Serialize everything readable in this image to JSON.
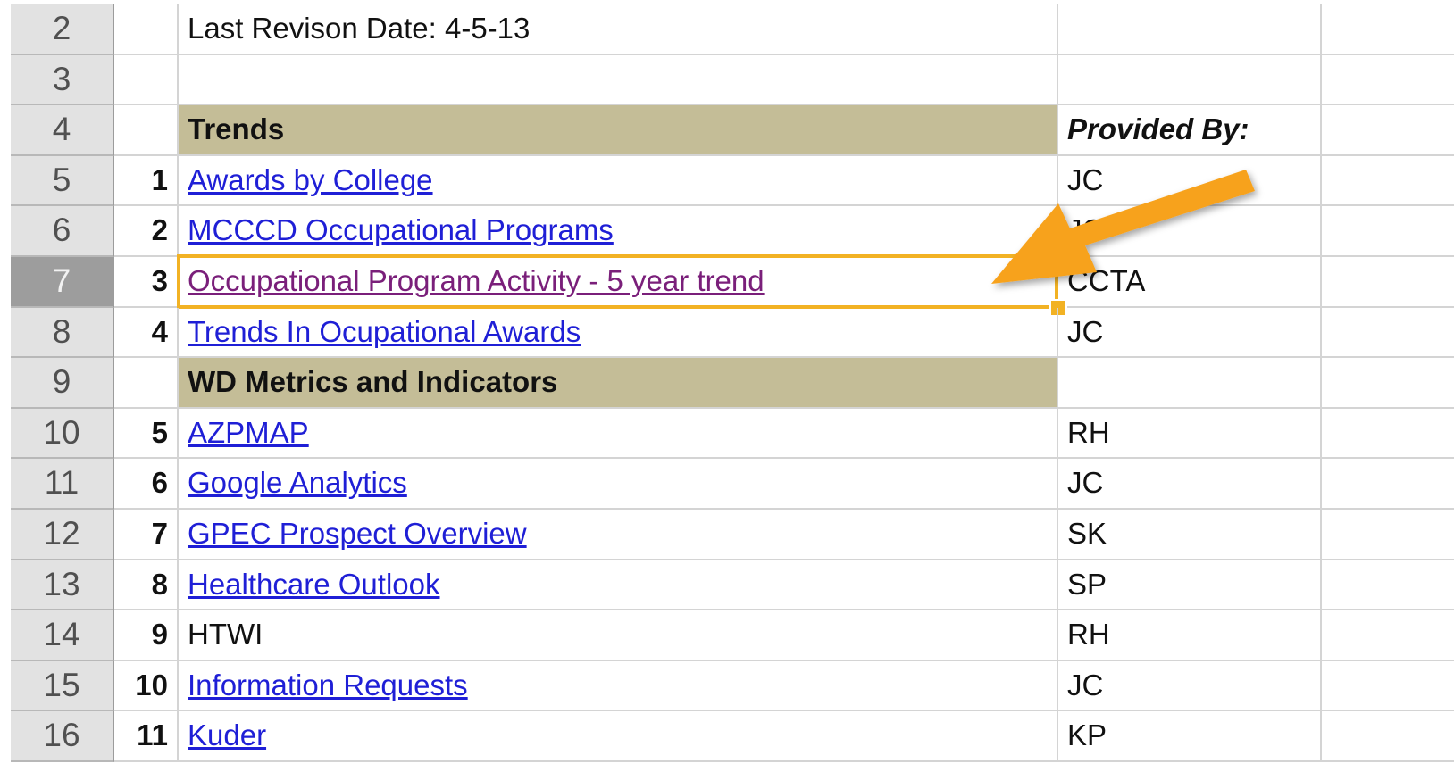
{
  "rows": [
    {
      "row": 2,
      "text": "Last Revison Date: 4-5-13"
    },
    {
      "row": 3
    },
    {
      "row": 4,
      "text": "Trends",
      "section": true,
      "provided": "Provided By:",
      "provided_header": true
    },
    {
      "row": 5,
      "num": 1,
      "text": "Awards by College",
      "link": true,
      "provided": "JC"
    },
    {
      "row": 6,
      "num": 2,
      "text": "MCCCD Occupational Programs",
      "link": true,
      "provided": "JC"
    },
    {
      "row": 7,
      "num": 3,
      "text": "Occupational Program Activity - 5 year trend",
      "link": true,
      "visited": true,
      "selected": true,
      "provided": "CCTA"
    },
    {
      "row": 8,
      "num": 4,
      "text": "Trends In Ocupational Awards",
      "link": true,
      "provided": "JC"
    },
    {
      "row": 9,
      "text": "WD Metrics and Indicators",
      "section": true
    },
    {
      "row": 10,
      "num": 5,
      "text": "AZPMAP",
      "link": true,
      "provided": "RH"
    },
    {
      "row": 11,
      "num": 6,
      "text": "Google Analytics",
      "link": true,
      "provided": "JC"
    },
    {
      "row": 12,
      "num": 7,
      "text": "GPEC Prospect Overview",
      "link": true,
      "provided": "SK"
    },
    {
      "row": 13,
      "num": 8,
      "text": "Healthcare Outlook",
      "link": true,
      "provided": "SP"
    },
    {
      "row": 14,
      "num": 9,
      "text": "HTWI",
      "provided": "RH"
    },
    {
      "row": 15,
      "num": 10,
      "text": "Information Requests",
      "link": true,
      "provided": "JC"
    },
    {
      "row": 16,
      "num": 11,
      "text": "Kuder",
      "link": true,
      "provided": "KP"
    }
  ]
}
